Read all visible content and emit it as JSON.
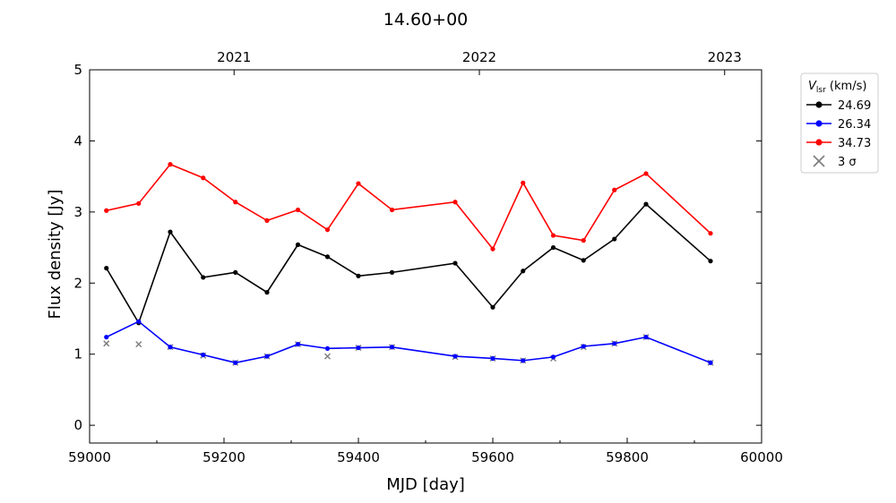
{
  "chart_data": {
    "type": "line",
    "title": "14.60+00",
    "xlabel": "MJD [day]",
    "ylabel": "Flux density [Jy]",
    "xlim": [
      59000,
      60000
    ],
    "ylim": [
      -0.25,
      5
    ],
    "xticks": [
      59000,
      59200,
      59400,
      59600,
      59800,
      60000
    ],
    "yticks": [
      0,
      1,
      2,
      3,
      4,
      5
    ],
    "top_axis": {
      "ticks": [
        {
          "label": "2021",
          "mjd": 59215
        },
        {
          "label": "2022",
          "mjd": 59580
        },
        {
          "label": "2023",
          "mjd": 59945
        }
      ]
    },
    "grid": false,
    "legend": {
      "placement": "outside-right",
      "title_main": "V",
      "title_sub": "lsr",
      "title_rest": " (km/s)",
      "sigma_label": "3 σ"
    },
    "series": [
      {
        "name": "24.69",
        "color": "#000000",
        "x": [
          59025,
          59073,
          59120,
          59169,
          59217,
          59264,
          59310,
          59354,
          59400,
          59450,
          59544,
          59600,
          59645,
          59690,
          59735,
          59781,
          59828,
          59924
        ],
        "y": [
          2.21,
          1.44,
          2.72,
          2.08,
          2.15,
          1.87,
          2.54,
          2.37,
          2.1,
          2.15,
          2.28,
          1.66,
          2.17,
          2.5,
          2.32,
          2.62,
          3.11,
          2.31
        ]
      },
      {
        "name": "26.34",
        "color": "#0000ff",
        "x": [
          59025,
          59073,
          59120,
          59169,
          59217,
          59264,
          59310,
          59354,
          59400,
          59450,
          59544,
          59600,
          59645,
          59690,
          59735,
          59781,
          59828,
          59924
        ],
        "y": [
          1.24,
          1.46,
          1.1,
          0.99,
          0.88,
          0.97,
          1.14,
          1.08,
          1.09,
          1.1,
          0.97,
          0.94,
          0.91,
          0.96,
          1.11,
          1.15,
          1.24,
          0.88
        ]
      },
      {
        "name": "34.73",
        "color": "#ff0000",
        "x": [
          59025,
          59073,
          59120,
          59169,
          59217,
          59264,
          59310,
          59354,
          59400,
          59450,
          59544,
          59600,
          59645,
          59690,
          59735,
          59781,
          59828,
          59924
        ],
        "y": [
          3.02,
          3.12,
          3.67,
          3.48,
          3.14,
          2.88,
          3.03,
          2.75,
          3.4,
          3.03,
          3.14,
          2.48,
          3.41,
          2.67,
          2.6,
          3.31,
          3.54,
          2.7
        ]
      }
    ],
    "sigma_points": {
      "name": "3 σ",
      "color": "#808080",
      "x": [
        59025,
        59073,
        59120,
        59169,
        59217,
        59264,
        59310,
        59354,
        59400,
        59450,
        59544,
        59600,
        59645,
        59690,
        59735,
        59781,
        59828,
        59924
      ],
      "y": [
        1.15,
        1.14,
        1.1,
        0.98,
        0.88,
        0.97,
        1.14,
        0.97,
        1.09,
        1.1,
        0.96,
        0.94,
        0.91,
        0.94,
        1.1,
        1.15,
        1.24,
        0.88
      ]
    }
  }
}
